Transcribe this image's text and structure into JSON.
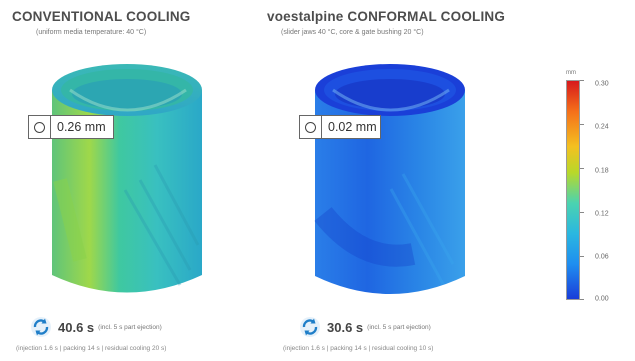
{
  "left_panel": {
    "title": "CONVENTIONAL COOLING",
    "subtitle": "(uniform media temperature: 40 °C)",
    "deformation": "0.26 mm",
    "cycle_time": "40.6 s",
    "cycle_note": "(incl. 5 s part ejection)",
    "breakdown": "(injection 1.6 s | packing 14 s | residual cooling 20 s)"
  },
  "right_panel": {
    "title": "voestalpine CONFORMAL COOLING",
    "subtitle": "(slider jaws 40 °C, core & gate bushing 20 °C)",
    "deformation": "0.02 mm",
    "cycle_time": "30.6 s",
    "cycle_note": "(incl. 5 s part ejection)",
    "breakdown": "(injection 1.6 s | packing 14 s | residual cooling 10 s)"
  },
  "scale": {
    "unit": "mm",
    "ticks": [
      "0.30",
      "0.24",
      "0.18",
      "0.12",
      "0.06",
      "0.00"
    ]
  },
  "colors": {
    "conventional_part": "#2fc7a8",
    "conformal_part": "#1a55e0",
    "icon_blue": "#1f7ec8"
  }
}
